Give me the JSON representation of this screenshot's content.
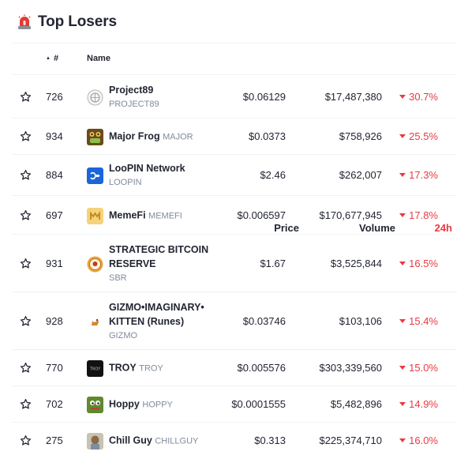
{
  "header": {
    "title": "Top Losers",
    "icon": "siren-icon"
  },
  "columns": {
    "rank": "#",
    "name": "Name",
    "price": "Price",
    "volume": "Volume",
    "change": "24h"
  },
  "rows": [
    {
      "rank": "726",
      "name": "Project89",
      "symbol": "PROJECT89",
      "price": "$0.06129",
      "volume": "$17,487,380",
      "change": "30.7%",
      "logo": "project89-logo"
    },
    {
      "rank": "934",
      "name": "Major Frog",
      "symbol": "MAJOR",
      "price": "$0.0373",
      "volume": "$758,926",
      "change": "25.5%",
      "logo": "major-frog-logo"
    },
    {
      "rank": "884",
      "name": "LooPIN Network",
      "symbol": "LOOPIN",
      "price": "$2.46",
      "volume": "$262,007",
      "change": "17.3%",
      "logo": "loopin-logo"
    },
    {
      "rank": "697",
      "name": "MemeFi",
      "symbol": "MEMEFI",
      "price": "$0.006597",
      "volume": "$170,677,945",
      "change": "17.8%",
      "logo": "memefi-logo"
    },
    {
      "rank": "931",
      "name": "STRATEGIC BITCOIN RESERVE",
      "symbol": "SBR",
      "price": "$1.67",
      "volume": "$3,525,844",
      "change": "16.5%",
      "logo": "sbr-logo"
    },
    {
      "rank": "928",
      "name": "GIZMO•IMAGINARY• KITTEN (Runes)",
      "symbol": "GIZMO",
      "price": "$0.03746",
      "volume": "$103,106",
      "change": "15.4%",
      "logo": "gizmo-logo"
    },
    {
      "rank": "770",
      "name": "TROY",
      "symbol": "TROY",
      "price": "$0.005576",
      "volume": "$303,339,560",
      "change": "15.0%",
      "logo": "troy-logo"
    },
    {
      "rank": "702",
      "name": "Hoppy",
      "symbol": "HOPPY",
      "price": "$0.0001555",
      "volume": "$5,482,896",
      "change": "14.9%",
      "logo": "hoppy-logo"
    },
    {
      "rank": "275",
      "name": "Chill Guy",
      "symbol": "CHILLGUY",
      "price": "$0.313",
      "volume": "$225,374,710",
      "change": "16.0%",
      "logo": "chill-guy-logo"
    }
  ],
  "colors": {
    "negative": "#ea3943",
    "text": "#222531",
    "muted": "#808a9d",
    "divider": "#eff2f5"
  }
}
